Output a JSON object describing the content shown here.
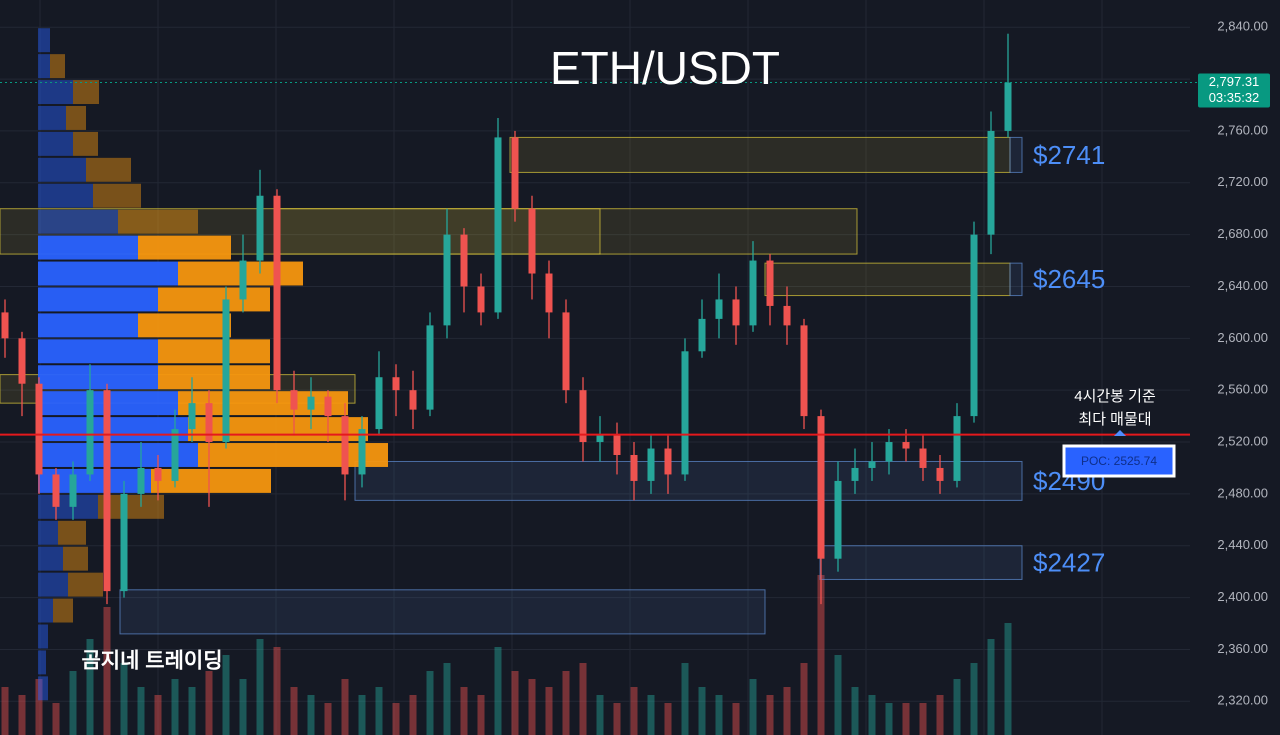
{
  "chart_data": {
    "type": "candlestick",
    "title": "ETH/USDT",
    "watermark": "곰지네 트레이딩",
    "annotation": [
      "4시간봉 기준",
      "최다 매물대"
    ],
    "up_color": "#26a69a",
    "down_color": "#ef5350",
    "ylim": [
      2294,
      2861
    ],
    "yticks": [
      {
        "value": 2320,
        "label": "2,320.00"
      },
      {
        "value": 2360,
        "label": "2,360.00"
      },
      {
        "value": 2400,
        "label": "2,400.00"
      },
      {
        "value": 2440,
        "label": "2,440.00"
      },
      {
        "value": 2480,
        "label": "2,480.00"
      },
      {
        "value": 2520,
        "label": "2,520.00"
      },
      {
        "value": 2560,
        "label": "2,560.00"
      },
      {
        "value": 2600,
        "label": "2,600.00"
      },
      {
        "value": 2640,
        "label": "2,640.00"
      },
      {
        "value": 2680,
        "label": "2,680.00"
      },
      {
        "value": 2720,
        "label": "2,720.00"
      },
      {
        "value": 2760,
        "label": "2,760.00"
      },
      {
        "value": 2800,
        "label": "2,800.00"
      },
      {
        "value": 2840,
        "label": "2,840.00"
      }
    ],
    "grid": true,
    "current_price": {
      "value": 2797.31,
      "label": "2,797.31",
      "timer": "03:35:32",
      "color": "#089981"
    },
    "poc": {
      "value": 2525.74,
      "label": "POC: 2525.74",
      "color": "#e5191c"
    },
    "open": [
      2620,
      2600,
      2565,
      2495,
      2470,
      2495,
      2560,
      2405,
      2480,
      2500,
      2490,
      2530,
      2550,
      2520,
      2630,
      2660,
      2710,
      2560,
      2545,
      2555,
      2540,
      2495,
      2530,
      2570,
      2560,
      2545,
      2610,
      2680,
      2640,
      2620,
      2755,
      2700,
      2650,
      2620,
      2560,
      2520,
      2525,
      2510,
      2490,
      2515,
      2495,
      2590,
      2615,
      2630,
      2610,
      2660,
      2625,
      2610,
      2540,
      2430,
      2490,
      2500,
      2505,
      2520,
      2515,
      2500,
      2490,
      2540,
      2680,
      2760
    ],
    "high": [
      2630,
      2605,
      2570,
      2500,
      2505,
      2580,
      2565,
      2490,
      2520,
      2510,
      2545,
      2570,
      2560,
      2640,
      2680,
      2730,
      2715,
      2575,
      2570,
      2560,
      2550,
      2540,
      2590,
      2580,
      2575,
      2620,
      2700,
      2685,
      2650,
      2770,
      2760,
      2710,
      2660,
      2630,
      2570,
      2540,
      2535,
      2520,
      2525,
      2525,
      2600,
      2630,
      2650,
      2640,
      2675,
      2665,
      2640,
      2615,
      2545,
      2505,
      2515,
      2520,
      2530,
      2530,
      2525,
      2510,
      2550,
      2690,
      2775,
      2835
    ],
    "low": [
      2585,
      2540,
      2480,
      2460,
      2460,
      2490,
      2395,
      2400,
      2470,
      2475,
      2485,
      2520,
      2470,
      2515,
      2620,
      2650,
      2550,
      2525,
      2530,
      2520,
      2475,
      2485,
      2525,
      2540,
      2530,
      2540,
      2600,
      2620,
      2610,
      2615,
      2690,
      2630,
      2600,
      2550,
      2505,
      2505,
      2495,
      2475,
      2480,
      2480,
      2490,
      2585,
      2600,
      2595,
      2605,
      2610,
      2595,
      2530,
      2395,
      2420,
      2480,
      2490,
      2495,
      2505,
      2490,
      2480,
      2485,
      2535,
      2665,
      2755
    ],
    "close": [
      2600,
      2565,
      2495,
      2470,
      2495,
      2560,
      2405,
      2480,
      2500,
      2490,
      2530,
      2550,
      2520,
      2630,
      2660,
      2710,
      2560,
      2545,
      2555,
      2540,
      2495,
      2530,
      2570,
      2560,
      2545,
      2610,
      2680,
      2640,
      2620,
      2755,
      2700,
      2650,
      2620,
      2560,
      2520,
      2525,
      2510,
      2490,
      2515,
      2495,
      2590,
      2615,
      2630,
      2610,
      2660,
      2625,
      2610,
      2540,
      2430,
      2490,
      2500,
      2505,
      2520,
      2515,
      2500,
      2490,
      2540,
      2680,
      2760,
      2797.31
    ],
    "volume": [
      30,
      25,
      35,
      20,
      40,
      60,
      80,
      45,
      30,
      25,
      35,
      30,
      40,
      50,
      35,
      60,
      55,
      30,
      25,
      20,
      35,
      25,
      30,
      20,
      25,
      40,
      45,
      30,
      25,
      55,
      40,
      35,
      30,
      40,
      45,
      25,
      20,
      30,
      25,
      20,
      45,
      30,
      25,
      20,
      35,
      25,
      30,
      45,
      100,
      50,
      30,
      25,
      20,
      20,
      20,
      25,
      35,
      45,
      60,
      70
    ],
    "profile": {
      "prices": [
        2820,
        2800,
        2780,
        2760,
        2740,
        2720,
        2700,
        2680,
        2660,
        2640,
        2620,
        2600,
        2580,
        2560,
        2540,
        2520,
        2500,
        2480,
        2460,
        2440,
        2420,
        2400,
        2380,
        2360,
        2340,
        2320
      ],
      "buy": [
        12,
        12,
        35,
        28,
        35,
        48,
        55,
        80,
        100,
        140,
        120,
        100,
        120,
        120,
        140,
        150,
        160,
        113,
        60,
        20,
        25,
        30,
        15,
        10,
        8,
        10
      ],
      "sell": [
        0,
        15,
        26,
        20,
        25,
        45,
        48,
        80,
        93,
        125,
        112,
        93,
        112,
        112,
        170,
        180,
        190,
        120,
        66,
        28,
        25,
        35,
        20,
        0,
        0,
        0
      ],
      "buy_color": "#2962ff",
      "sell_color": "#f5960f",
      "value_area": [
        2480,
        2680
      ]
    },
    "zones": [
      {
        "low": 2665,
        "high": 2700,
        "color": "#d4c13a"
      },
      {
        "low": 2665,
        "high": 2700,
        "color": "#d4c13a"
      },
      {
        "low": 2550,
        "high": 2572,
        "color": "#d4c13a"
      },
      {
        "low": 2728,
        "high": 2755,
        "color": "#d4c13a"
      },
      {
        "low": 2728,
        "high": 2755,
        "color": "#5b87c9",
        "label": "$2741"
      },
      {
        "low": 2633,
        "high": 2658,
        "color": "#d4c13a"
      },
      {
        "low": 2633,
        "high": 2658,
        "color": "#5b87c9",
        "label": "$2645"
      },
      {
        "low": 2475,
        "high": 2505,
        "color": "#5b87c9",
        "label": "$2490"
      },
      {
        "low": 2414,
        "high": 2440,
        "color": "#5b87c9",
        "label": "$2427"
      },
      {
        "low": 2372,
        "high": 2406,
        "color": "#5b87c9"
      }
    ]
  }
}
